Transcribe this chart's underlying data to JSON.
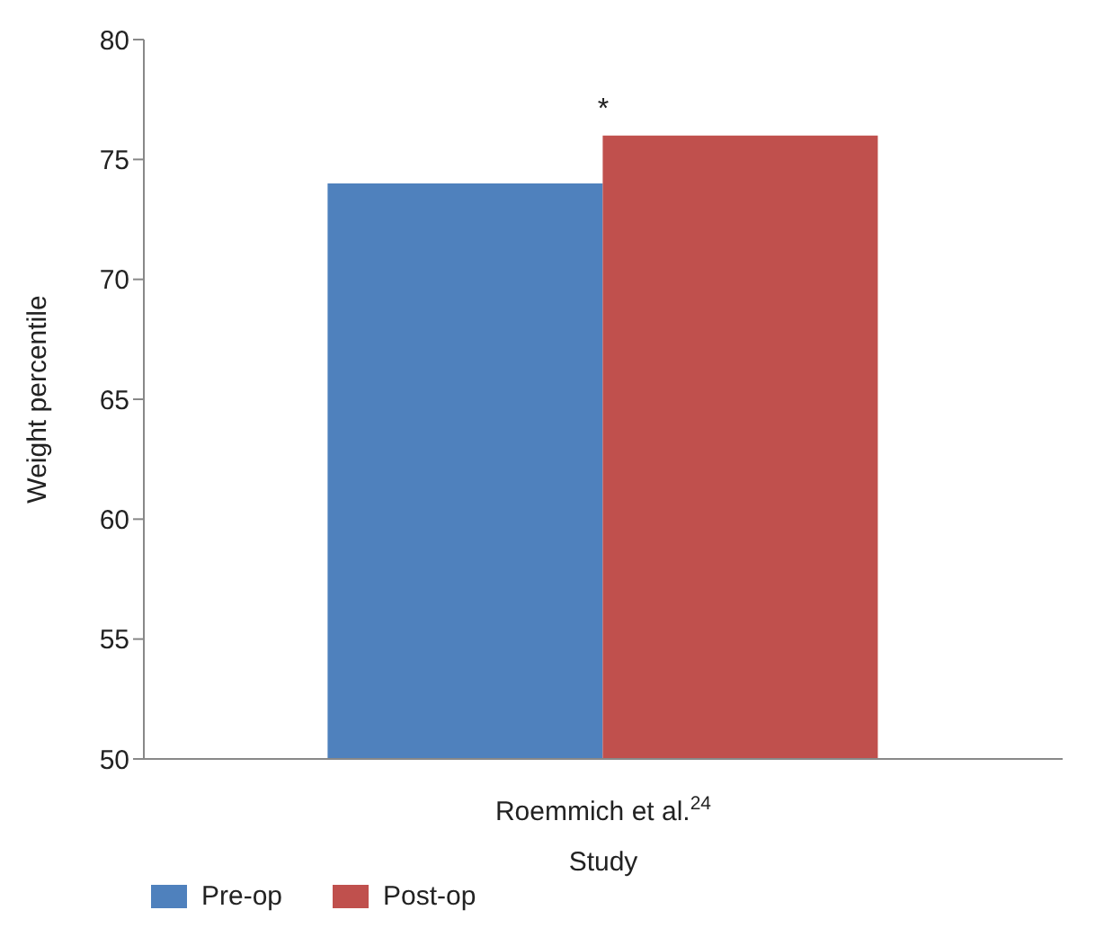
{
  "chart_data": {
    "type": "bar",
    "xlabel": "Study",
    "ylabel": "Weight percentile",
    "categories": [
      "Roemmich et al.$^{24}$"
    ],
    "series": [
      {
        "name": "Pre-op",
        "color": "#4f81bd",
        "values": [
          74
        ]
      },
      {
        "name": "Post-op",
        "color": "#c0504d",
        "values": [
          76
        ]
      }
    ],
    "ylim": [
      50,
      80
    ],
    "yticks": [
      50,
      55,
      60,
      65,
      70,
      75,
      80
    ],
    "grid": false,
    "legend": "bottom left",
    "annotations": [
      {
        "text": "*",
        "x": "Roemmich et al.$^{24}$",
        "y": 76
      }
    ]
  }
}
